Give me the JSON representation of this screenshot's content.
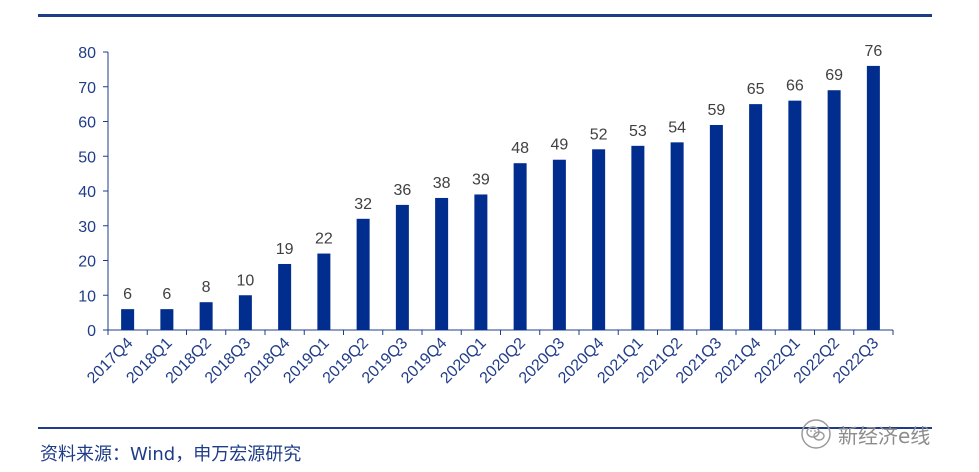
{
  "chart_data": {
    "type": "bar",
    "categories": [
      "2017Q4",
      "2018Q1",
      "2018Q2",
      "2018Q3",
      "2018Q4",
      "2019Q1",
      "2019Q2",
      "2019Q3",
      "2019Q4",
      "2020Q1",
      "2020Q2",
      "2020Q3",
      "2020Q4",
      "2021Q1",
      "2021Q2",
      "2021Q3",
      "2021Q4",
      "2022Q1",
      "2022Q2",
      "2022Q3"
    ],
    "values": [
      6,
      6,
      8,
      10,
      19,
      22,
      32,
      36,
      38,
      39,
      48,
      49,
      52,
      53,
      54,
      59,
      65,
      66,
      69,
      76
    ],
    "ylim": [
      0,
      80
    ],
    "yticks": [
      0,
      10,
      20,
      30,
      40,
      50,
      60,
      70,
      80
    ],
    "grid": false,
    "bar_color": "#002d8e",
    "axis_color": "#1f3c88"
  },
  "footer": {
    "source": "资料来源：Wind，申万宏源研究",
    "watermark": "新经济e线"
  }
}
